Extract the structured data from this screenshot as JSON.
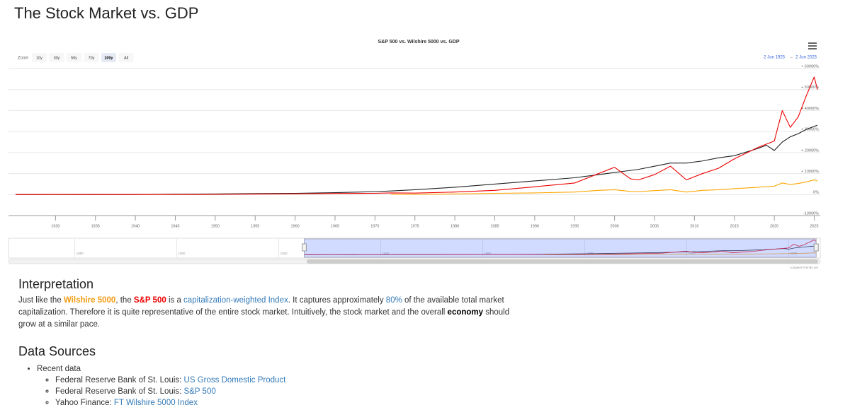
{
  "header": {
    "title": "The Stock Market vs. GDP"
  },
  "chart_data": {
    "type": "line",
    "title": "S&P 500 vs. Wilshire 5000 vs. GDP",
    "zoom_label": "Zoom",
    "zoom_buttons": [
      "10y",
      "30y",
      "50y",
      "70y",
      "100y",
      "All"
    ],
    "selected_zoom": 4,
    "range_from": "2 Jun 1925",
    "range_arrow": "→",
    "range_to": "2 Jun 2025",
    "x": [
      1925,
      1930,
      1935,
      1940,
      1945,
      1950,
      1955,
      1960,
      1965,
      1970,
      1972,
      1975,
      1980,
      1985,
      1990,
      1995,
      1998,
      2000,
      2002,
      2003,
      2005,
      2007,
      2009,
      2011,
      2013,
      2015,
      2018,
      2019,
      2020,
      2021,
      2022,
      2023,
      2024,
      2025,
      2025.4
    ],
    "series": [
      {
        "color": "#222222",
        "values": [
          0,
          10,
          -10,
          50,
          200,
          300,
          450,
          600,
          900,
          1400,
          1700,
          2300,
          3500,
          5000,
          6500,
          8000,
          9500,
          10500,
          11500,
          12000,
          13500,
          15000,
          15000,
          16000,
          17500,
          18500,
          22000,
          23500,
          21000,
          25000,
          27500,
          29000,
          31000,
          32500,
          33000
        ]
      },
      {
        "color": "#ffa500",
        "values": [
          null,
          null,
          null,
          null,
          null,
          null,
          null,
          null,
          null,
          null,
          100,
          100,
          300,
          600,
          800,
          1200,
          2000,
          2300,
          1500,
          1400,
          1900,
          2300,
          1200,
          2000,
          2300,
          2800,
          3500,
          3800,
          4000,
          5500,
          4800,
          5300,
          6000,
          7000,
          6500
        ]
      },
      {
        "color": "#ee0000",
        "values": [
          0,
          80,
          40,
          40,
          70,
          100,
          250,
          350,
          550,
          600,
          800,
          700,
          1200,
          2000,
          3700,
          5500,
          10000,
          13000,
          7500,
          7000,
          9500,
          13500,
          7000,
          10000,
          12500,
          17000,
          22500,
          24000,
          25500,
          40000,
          32000,
          37000,
          47000,
          56000,
          50000
        ]
      }
    ],
    "xlim": [
      1925,
      2025.4
    ],
    "xticks": [
      1930,
      1935,
      1940,
      1945,
      1950,
      1955,
      1960,
      1965,
      1970,
      1975,
      1980,
      1985,
      1990,
      1995,
      2000,
      2005,
      2010,
      2015,
      2020,
      2025
    ],
    "ylim": [
      -10000,
      60000
    ],
    "yticks": [
      {
        "value": -10000,
        "label": "-10000%"
      },
      {
        "value": 0,
        "label": "0%"
      },
      {
        "value": 10000,
        "label": "+ 10000%"
      },
      {
        "value": 20000,
        "label": "+ 20000%"
      },
      {
        "value": 30000,
        "label": "+ 30000%"
      },
      {
        "value": 40000,
        "label": "+ 40000%"
      },
      {
        "value": 50000,
        "label": "+ 50000%"
      },
      {
        "value": 60000,
        "label": "+ 60000%"
      }
    ],
    "grid": true,
    "navigator": {
      "xlim": [
        1867,
        2026.2
      ],
      "xticks": [
        1880,
        1900,
        1920,
        1940,
        1960,
        1980,
        2000,
        2020
      ]
    },
    "credit": "LongtermTrends.net"
  },
  "interpretation": {
    "heading": "Interpretation",
    "paragraph": [
      {
        "text": "Just like the "
      },
      {
        "text": "Wilshire 5000",
        "style": "orange"
      },
      {
        "text": ", the "
      },
      {
        "text": "S&P 500",
        "style": "red"
      },
      {
        "text": " is a "
      },
      {
        "text": "capitalization-weighted Index",
        "style": "link"
      },
      {
        "text": ". It captures approximately "
      },
      {
        "text": "80%",
        "style": "link"
      },
      {
        "text": " of the available total market capitalization. Therefore it is quite representative of the entire stock market. Intuitively, the stock market and the overall "
      },
      {
        "text": "economy",
        "style": "bold"
      },
      {
        "text": " should grow at a similar pace."
      }
    ]
  },
  "data_sources": {
    "heading": "Data Sources",
    "group": "Recent data",
    "items": [
      {
        "prefix": "Federal Reserve Bank of St. Louis: ",
        "link": "US Gross Domestic Product"
      },
      {
        "prefix": "Federal Reserve Bank of St. Louis: ",
        "link": "S&P 500"
      },
      {
        "prefix": "Yahoo Finance: ",
        "link": "FT Wilshire 5000 Index"
      }
    ]
  }
}
